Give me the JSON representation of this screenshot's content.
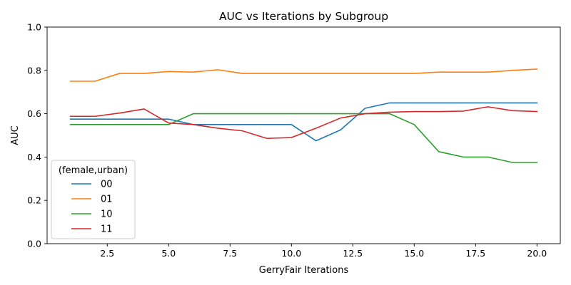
{
  "chart_data": {
    "type": "line",
    "title": "AUC vs Iterations by Subgroup",
    "xlabel": "GerryFair Iterations",
    "ylabel": "AUC",
    "xlim": [
      0.05,
      20.95
    ],
    "ylim": [
      0.0,
      1.0
    ],
    "xticks": [
      2.5,
      5.0,
      7.5,
      10.0,
      12.5,
      15.0,
      17.5,
      20.0
    ],
    "xtick_labels": [
      "2.5",
      "5.0",
      "7.5",
      "10.0",
      "12.5",
      "15.0",
      "17.5",
      "20.0"
    ],
    "yticks": [
      0.0,
      0.2,
      0.4,
      0.6,
      0.8,
      1.0
    ],
    "ytick_labels": [
      "0.0",
      "0.2",
      "0.4",
      "0.6",
      "0.8",
      "1.0"
    ],
    "grid": false,
    "legend": {
      "title": "(female,urban)",
      "placement": "lower-left"
    },
    "x": [
      1,
      2,
      3,
      4,
      5,
      6,
      7,
      8,
      9,
      10,
      11,
      12,
      13,
      14,
      15,
      16,
      17,
      18,
      19,
      20
    ],
    "series": [
      {
        "name": "00",
        "color": "#1f77b4",
        "values": [
          0.575,
          0.575,
          0.575,
          0.575,
          0.575,
          0.55,
          0.55,
          0.55,
          0.55,
          0.55,
          0.475,
          0.525,
          0.625,
          0.65,
          0.65,
          0.65,
          0.65,
          0.65,
          0.65,
          0.65
        ]
      },
      {
        "name": "01",
        "color": "#ff7f0e",
        "values": [
          0.75,
          0.75,
          0.786,
          0.786,
          0.795,
          0.792,
          0.803,
          0.786,
          0.786,
          0.786,
          0.786,
          0.786,
          0.786,
          0.786,
          0.786,
          0.792,
          0.792,
          0.792,
          0.8,
          0.806
        ]
      },
      {
        "name": "10",
        "color": "#2ca02c",
        "values": [
          0.55,
          0.55,
          0.55,
          0.55,
          0.55,
          0.6,
          0.6,
          0.6,
          0.6,
          0.6,
          0.6,
          0.6,
          0.6,
          0.6,
          0.55,
          0.425,
          0.4,
          0.4,
          0.375,
          0.375
        ]
      },
      {
        "name": "11",
        "color": "#d62728",
        "values": [
          0.588,
          0.588,
          0.603,
          0.622,
          0.557,
          0.55,
          0.533,
          0.521,
          0.486,
          0.49,
          0.533,
          0.58,
          0.6,
          0.607,
          0.61,
          0.61,
          0.612,
          0.632,
          0.614,
          0.61
        ]
      }
    ]
  }
}
